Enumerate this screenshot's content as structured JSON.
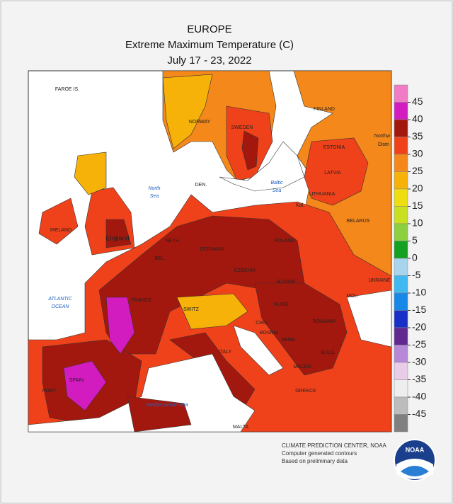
{
  "header": {
    "lines": [
      "EUROPE",
      "Extreme Maximum Temperature (C)",
      "July 17 - 23, 2022"
    ]
  },
  "legend": {
    "colors": [
      "#f07cc6",
      "#d21cc0",
      "#a3180e",
      "#f0421a",
      "#f4881a",
      "#f6b208",
      "#eede10",
      "#c8e020",
      "#8cd040",
      "#14a020",
      "#a8d4ee",
      "#40b8f0",
      "#1888e8",
      "#1830c8",
      "#602890",
      "#b888d8",
      "#e8cce8",
      "#eeeeee",
      "#bcbcbc",
      "#808080"
    ],
    "ticks": [
      45,
      40,
      35,
      30,
      25,
      20,
      15,
      10,
      5,
      0,
      -5,
      -10,
      -15,
      -20,
      -25,
      -30,
      -35,
      -40,
      -45
    ]
  },
  "labels": {
    "faroe": "FAROE IS.",
    "norway": "NORWAY",
    "sweden": "SWEDEN",
    "finland": "FINLAND",
    "estonia": "ESTONIA",
    "latvia": "LATVIA",
    "lithuania": "LITHUANIA",
    "kal": "Kal.",
    "belarus": "BELARUS",
    "den": "DEN.",
    "ireland": "IRELAND",
    "england": "England",
    "neth": "NETH.",
    "bel": "BEL.",
    "germany": "GERMANY",
    "poland": "POLAND",
    "czechia": "CZECHIA",
    "slovak": "SLOVAK.",
    "ukraine": "UKRAINE",
    "mol": "MOL.",
    "hung": "HUNG.",
    "romania": "ROMANIA",
    "france": "FRANCE",
    "switz": "SWITZ",
    "cro": "CRO.",
    "bosnia": "BOSNIA",
    "serb": "SERB.",
    "bulg": "BULG.",
    "maced": "MACED.",
    "greece": "GREECE",
    "italy": "ITALY",
    "spain": "SPAIN",
    "port": "PORT.",
    "malta": "MALTA",
    "northw": "Northw",
    "distri": "Distri"
  },
  "seas": {
    "north": [
      "North",
      "Sea"
    ],
    "baltic": [
      "Baltic",
      "Sea"
    ],
    "atlantic": [
      "ATLANTIC",
      "OCEAN"
    ],
    "med": "Mediterranean Sea"
  },
  "credits": [
    "CLIMATE PREDICTION CENTER, NOAA",
    "Computer generated contours",
    "Based on preliminary data"
  ],
  "logo": "NOAA"
}
